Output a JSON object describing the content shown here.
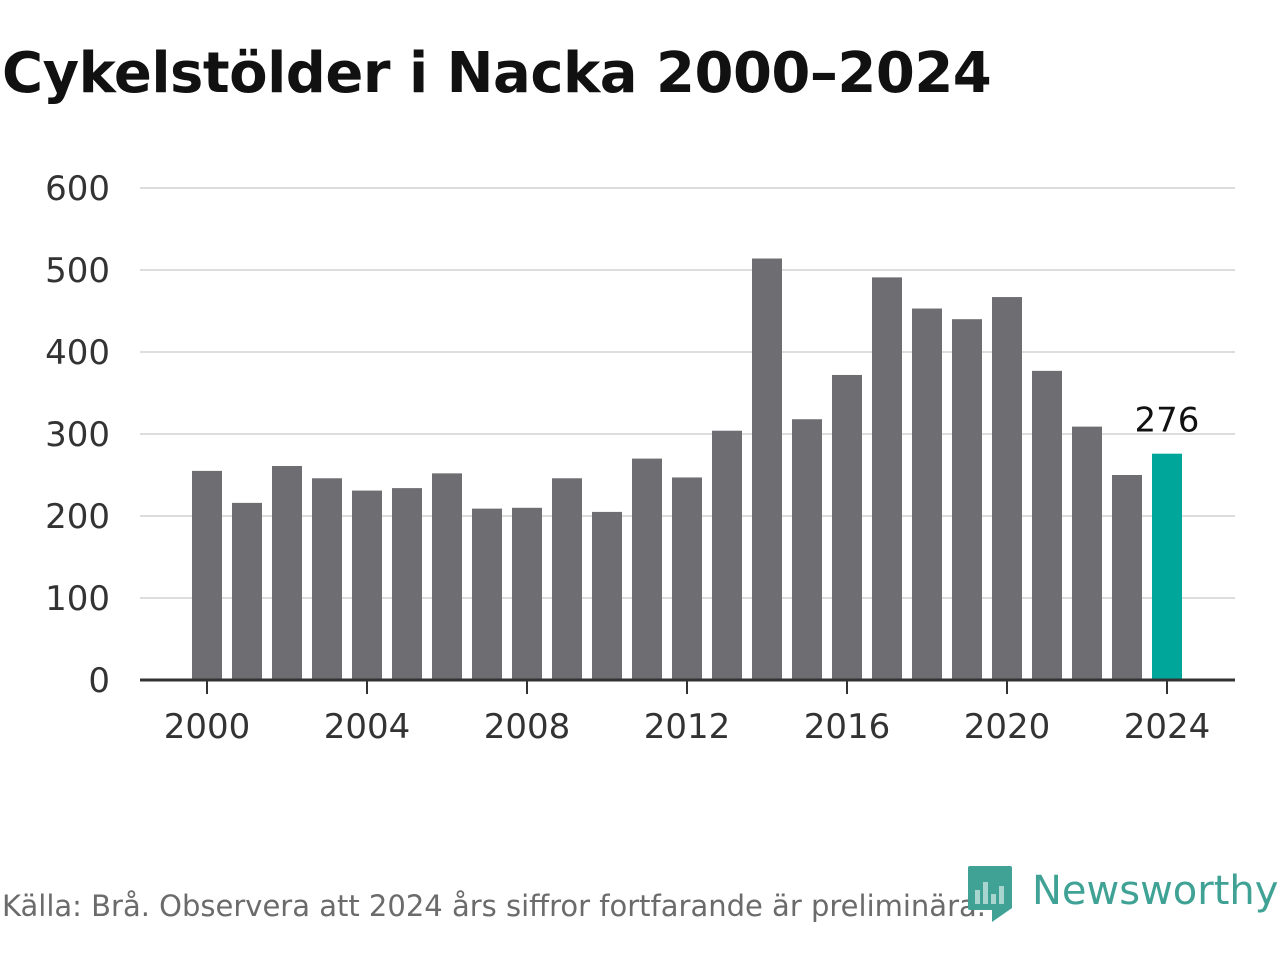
{
  "title": "Cykelstölder i Nacka 2000–2024",
  "chart_data": {
    "type": "bar",
    "title": "Cykelstölder i Nacka 2000–2024",
    "xlabel": "",
    "ylabel": "",
    "x": [
      2000,
      2001,
      2002,
      2003,
      2004,
      2005,
      2006,
      2007,
      2008,
      2009,
      2010,
      2011,
      2012,
      2013,
      2014,
      2015,
      2016,
      2017,
      2018,
      2019,
      2020,
      2021,
      2022,
      2023,
      2024
    ],
    "values": [
      255,
      216,
      261,
      246,
      231,
      234,
      252,
      209,
      210,
      246,
      205,
      270,
      247,
      304,
      514,
      318,
      372,
      491,
      453,
      440,
      467,
      377,
      309,
      250,
      276
    ],
    "ylim": [
      0,
      600
    ],
    "yticks": [
      0,
      100,
      200,
      300,
      400,
      500,
      600
    ],
    "xticks": [
      2000,
      2004,
      2008,
      2012,
      2016,
      2020,
      2024
    ],
    "annotations": [
      {
        "x": 2024,
        "text": "276"
      }
    ],
    "grid": true,
    "colors": {
      "bar": "#6d6d72",
      "highlight": "#00a699",
      "grid": "#dddddd",
      "axis": "#333333"
    }
  },
  "source": "Källa: Brå. Observera att 2024 års siffror fortfarande är preliminära.",
  "brand": {
    "name": "Newsworthy",
    "icon": "bar-chart-badge-icon",
    "color": "#3fa295"
  }
}
